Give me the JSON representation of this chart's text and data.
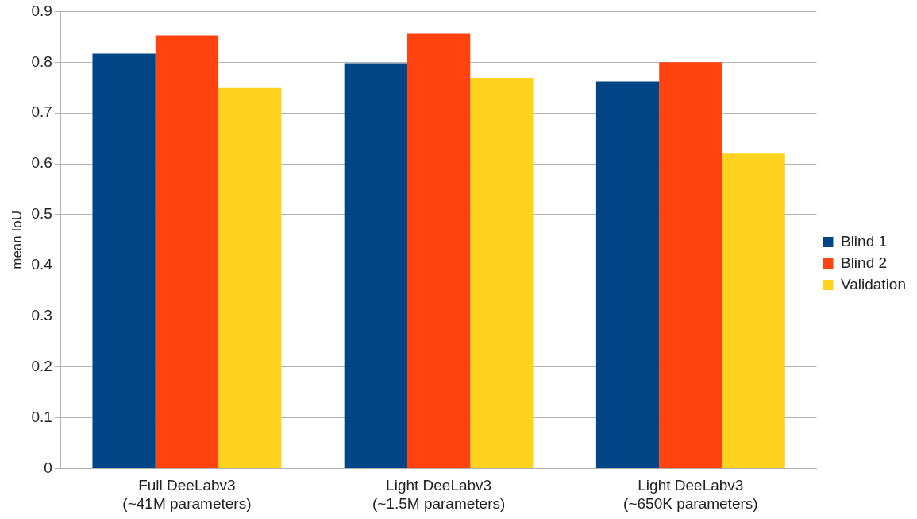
{
  "chart_data": {
    "type": "bar",
    "ylabel": "mean IoU",
    "categories": [
      "Full DeeLabv3\n(~41M parameters)",
      "Light DeeLabv3\n(~1.5M parameters)",
      "Light DeeLabv3\n(~650K parameters)"
    ],
    "series": [
      {
        "name": "Blind 1",
        "color": "#004586",
        "values": [
          0.817,
          0.798,
          0.762
        ]
      },
      {
        "name": "Blind 2",
        "color": "#ff420e",
        "values": [
          0.853,
          0.856,
          0.8
        ]
      },
      {
        "name": "Validation",
        "color": "#ffd320",
        "values": [
          0.749,
          0.769,
          0.62
        ]
      }
    ],
    "ylim": [
      0,
      0.9
    ],
    "yticks": [
      0,
      0.1,
      0.2,
      0.3,
      0.4,
      0.5,
      0.6,
      0.7,
      0.8,
      0.9
    ],
    "grid": "y",
    "legend": "right"
  }
}
